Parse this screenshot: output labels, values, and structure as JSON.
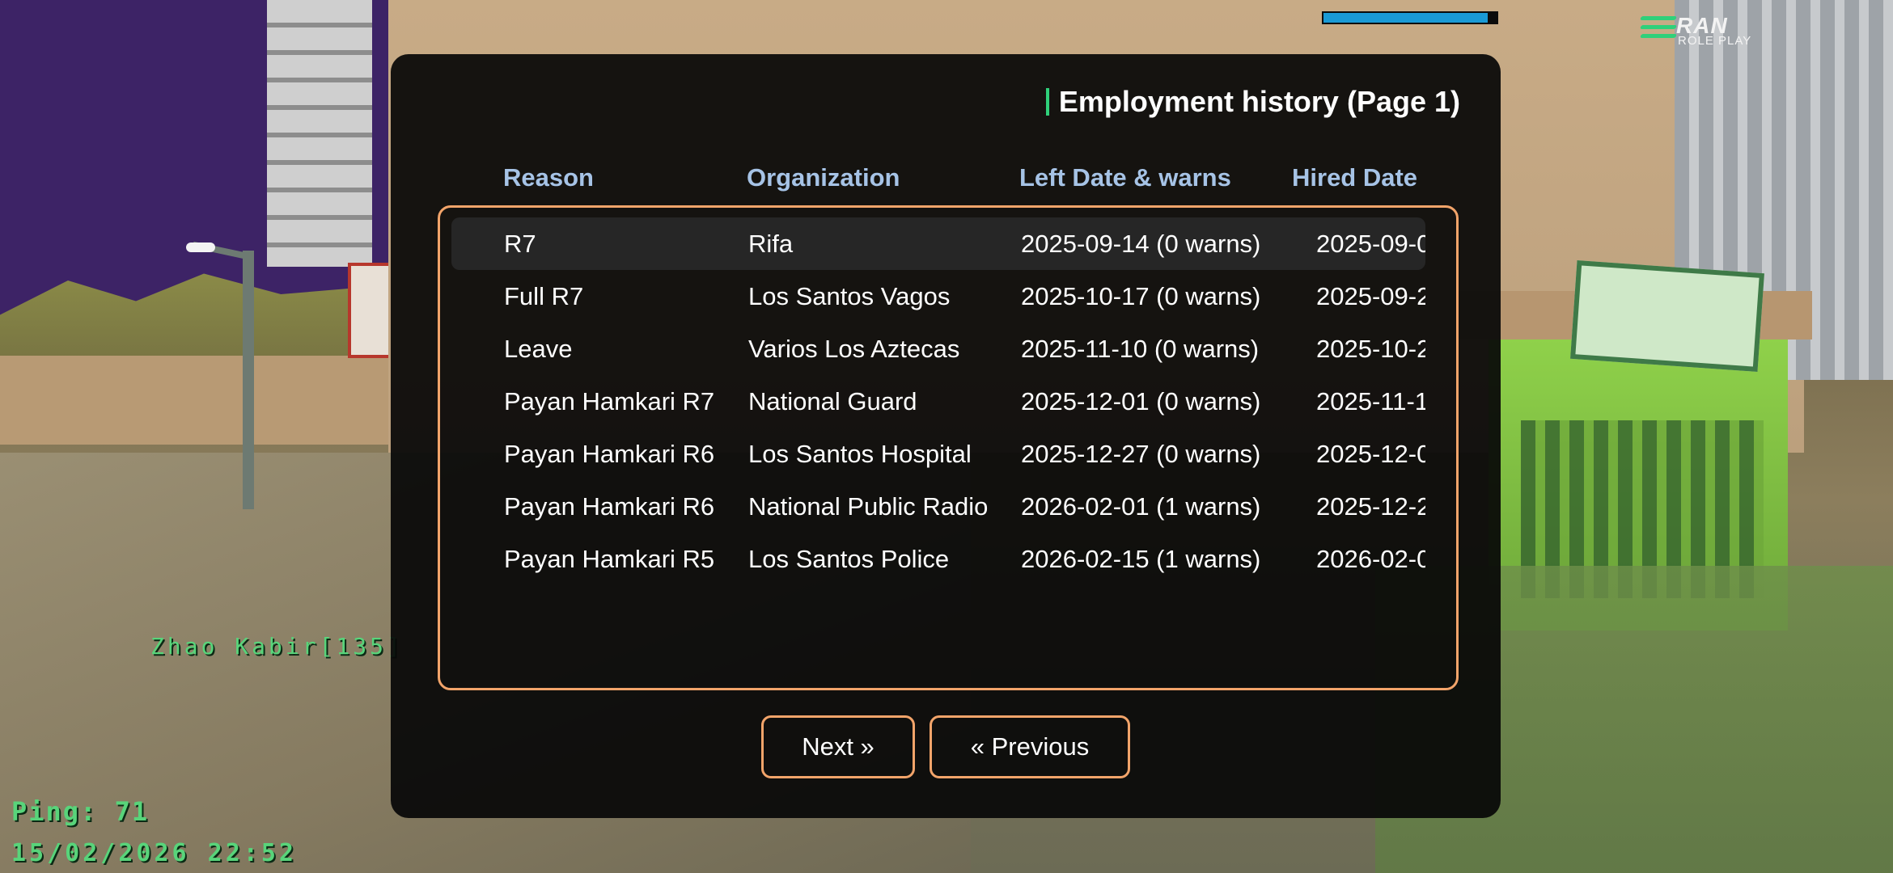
{
  "hud": {
    "health_fill_fraction": 0.95,
    "health_color": "#1a9ad6",
    "logo_main": "RAN",
    "logo_sub": "ROLE PLAY",
    "player_tag": "Zhao Kabir[135]",
    "ping": "Ping: 71",
    "datetime": "15/02/2026 22:52"
  },
  "dialog": {
    "title": "Employment history (Page 1)",
    "columns": [
      "Reason",
      "Organization",
      "Left Date & warns",
      "Hired Date"
    ],
    "rows": [
      {
        "reason": "R7",
        "organization": "Rifa",
        "left": "2025-09-14 (0 warns)",
        "hired": "2025-09-0"
      },
      {
        "reason": "Full R7",
        "organization": "Los Santos Vagos",
        "left": "2025-10-17 (0 warns)",
        "hired": "2025-09-2"
      },
      {
        "reason": "Leave",
        "organization": "Varios Los Aztecas",
        "left": "2025-11-10 (0 warns)",
        "hired": "2025-10-2"
      },
      {
        "reason": "Payan Hamkari R7",
        "organization": "National Guard",
        "left": "2025-12-01 (0 warns)",
        "hired": "2025-11-1"
      },
      {
        "reason": "Payan Hamkari R6",
        "organization": "Los Santos Hospital",
        "left": "2025-12-27 (0 warns)",
        "hired": "2025-12-0"
      },
      {
        "reason": "Payan Hamkari R6",
        "organization": "National Public Radio",
        "left": "2026-02-01 (1 warns)",
        "hired": "2025-12-2"
      },
      {
        "reason": "Payan Hamkari R5",
        "organization": "Los Santos Police",
        "left": "2026-02-15 (1 warns)",
        "hired": "2026-02-0"
      }
    ],
    "selected_row": 0,
    "buttons": {
      "next": "Next »",
      "previous": "« Previous"
    },
    "accent_color": "#f2a46a",
    "header_color": "#a6c3e6"
  }
}
